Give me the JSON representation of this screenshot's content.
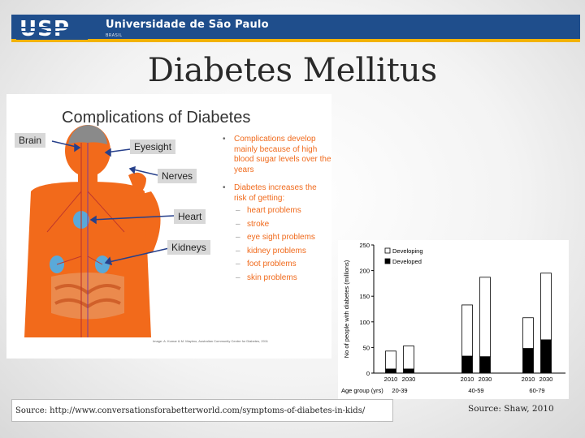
{
  "header": {
    "logo_text": "USP",
    "university": "Universidade de São Paulo",
    "country": "BRASIL"
  },
  "title": "Diabetes Mellitus",
  "infographic": {
    "title": "Complications of Diabetes",
    "labels": {
      "brain": "Brain",
      "eyesight": "Eyesight",
      "nerves": "Nerves",
      "heart": "Heart",
      "kidneys": "Kidneys"
    },
    "bullet1": "Complications develop mainly because of high blood sugar levels over the years",
    "bullet2": "Diabetes increases the risk of getting:",
    "risks": [
      "heart problems",
      "stroke",
      "eye sight problems",
      "kidney problems",
      "foot problems",
      "skin problems"
    ],
    "credit": "Image: A. Kumar & M. Mayimo, Australian Community Centre for Diabetes, 2011"
  },
  "chart_data": {
    "type": "bar",
    "ylabel": "No of people with diabetes (millions)",
    "ylim": [
      0,
      250
    ],
    "yticks": [
      "0",
      "50",
      "100",
      "150",
      "200",
      "250"
    ],
    "xlabel_prefix": "Age group (yrs)",
    "groups": [
      "20-39",
      "40-59",
      "60-79"
    ],
    "categories": [
      "2010",
      "2030",
      "2010",
      "2030",
      "2010",
      "2030"
    ],
    "series": [
      {
        "name": "Developing",
        "values": [
          35,
          45,
          100,
          155,
          60,
          130
        ],
        "color": "#ffffff"
      },
      {
        "name": "Developed",
        "values": [
          8,
          8,
          33,
          32,
          48,
          65
        ],
        "color": "#000000"
      }
    ],
    "legend": "top-left"
  },
  "sources": {
    "left": "Source: http://www.conversationsforabetterworld.com/symptoms-of-diabetes-in-kids/",
    "right": "Source: Shaw, 2010"
  },
  "colors": {
    "banner": "#1f4e8c",
    "banner_accent": "#f2b200",
    "body_orange": "#f26a1b",
    "bullet_orange": "#f06a1c"
  }
}
